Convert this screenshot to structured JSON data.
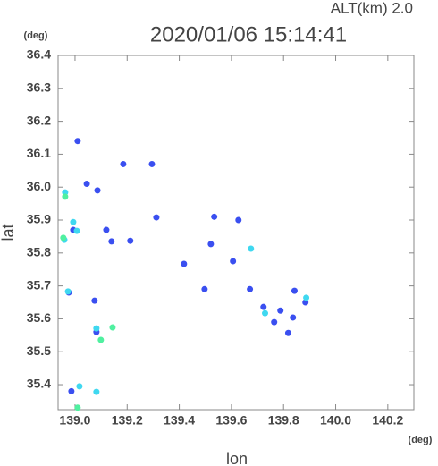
{
  "chart_data": {
    "type": "scatter",
    "title": "2020/01/06 15:14:41",
    "subtitle": "ALT(km) 2.0",
    "x_label": "lon",
    "y_label": "lat",
    "x_unit": "(deg)",
    "y_unit": "(deg)",
    "xlim": [
      138.935,
      140.3
    ],
    "ylim": [
      35.324,
      36.4
    ],
    "xticks": [
      {
        "value": 139,
        "label": "139.0"
      },
      139.2,
      139.4,
      139.6,
      139.8,
      {
        "value": 140,
        "label": "140.0"
      },
      140.2
    ],
    "yticks": [
      {
        "value": 35.4,
        "label": "35.4"
      },
      35.5,
      35.6,
      35.7,
      35.8,
      35.9,
      {
        "value": 36,
        "label": "36.0"
      },
      36.1,
      36.2,
      36.3,
      36.4
    ],
    "grid": false,
    "series": [
      {
        "color": "#3a4ff0",
        "x": [
          139.01,
          139.045,
          139.086,
          138.993,
          138.976,
          139.075,
          139.082,
          138.986,
          139.295,
          139.185,
          139.606,
          139.671,
          139.497,
          139.723,
          139.764,
          139.842,
          139.884,
          139.836,
          139.788,
          139.818,
          139.534,
          139.627,
          139.521,
          139.418,
          139.212,
          139.14,
          139.12,
          139.312
        ],
        "y": [
          36.14,
          36.01,
          35.99,
          35.87,
          35.68,
          35.655,
          35.56,
          35.38,
          36.07,
          36.07,
          35.775,
          35.69,
          35.69,
          35.636,
          35.59,
          35.685,
          35.65,
          35.604,
          35.625,
          35.557,
          35.91,
          35.9,
          35.827,
          35.767,
          35.837,
          35.835,
          35.87,
          35.908
        ]
      },
      {
        "color": "#3fd8f0",
        "x": [
          138.962,
          138.993,
          139.007,
          138.959,
          138.973,
          139.082,
          139.082,
          139.017,
          139.675,
          139.887,
          139.729
        ],
        "y": [
          35.984,
          35.894,
          35.867,
          35.84,
          35.683,
          35.571,
          35.378,
          35.395,
          35.813,
          35.664,
          35.617
        ]
      },
      {
        "color": "#50f0a0",
        "x": [
          138.962,
          138.955,
          139.144,
          139.01,
          139.099
        ],
        "y": [
          35.971,
          35.846,
          35.574,
          35.33,
          35.536
        ]
      }
    ]
  }
}
